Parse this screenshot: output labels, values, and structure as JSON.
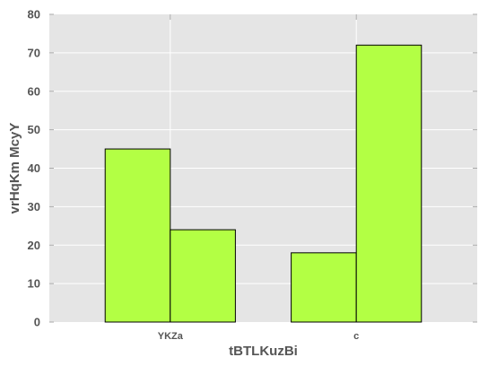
{
  "chart_data": {
    "type": "bar",
    "title": "",
    "xlabel": "tBTLKuzBi",
    "ylabel": "vrHqKm McyY",
    "categories": [
      "YKZa",
      "c"
    ],
    "series": [
      {
        "values": [
          45,
          18
        ]
      },
      {
        "values": [
          24,
          72
        ]
      }
    ],
    "ylim": [
      0,
      80
    ],
    "yticks": [
      "0",
      "10",
      "20",
      "30",
      "40",
      "50",
      "60",
      "70",
      "80"
    ],
    "grid": true,
    "legend": "none",
    "colors": {
      "bar_fill": "#b3ff44",
      "bar_edge": "#000000",
      "plot_bg": "#e5e5e5",
      "grid": "#ffffff",
      "text": "#555555"
    }
  }
}
